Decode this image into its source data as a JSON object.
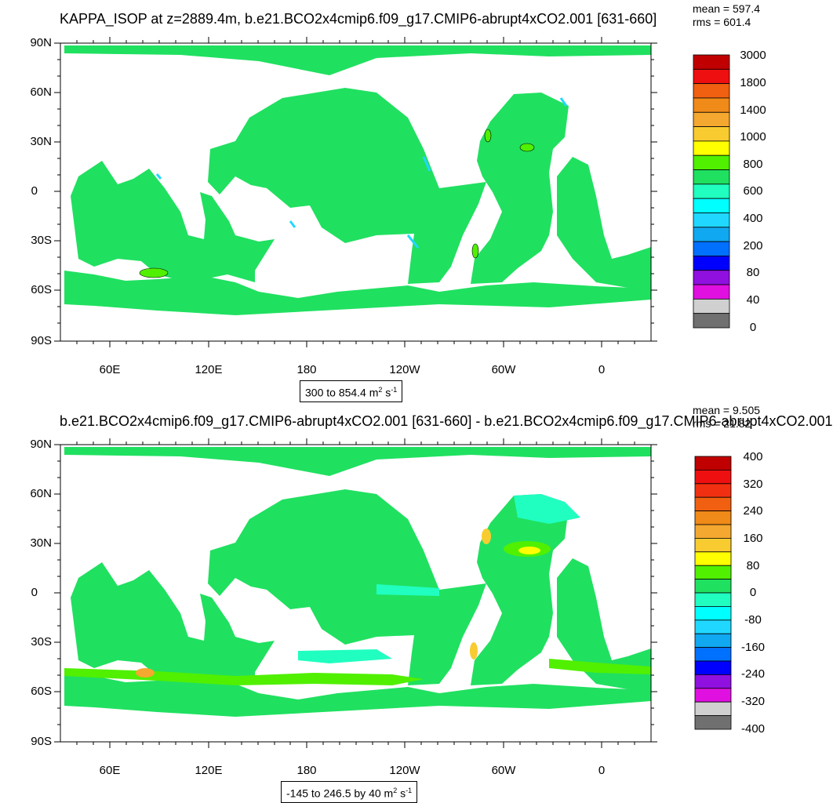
{
  "panels": [
    {
      "title": "KAPPA_ISOP at z=2889.4m, b.e21.BCO2x4cmip6.f09_g17.CMIP6-abrupt4xCO2.001 [631-660]",
      "mean": "mean = 597.4",
      "rms": "rms = 601.4",
      "range_note": "300 to 854.4 m",
      "range_unit_exp1": "2",
      "range_unit_s": " s",
      "range_unit_exp2": "-1",
      "colorbar_labels": [
        "3000",
        "1800",
        "1400",
        "1000",
        "800",
        "600",
        "400",
        "200",
        "80",
        "40",
        "0"
      ],
      "colorbar_colors": [
        "#c00000",
        "#ee1010",
        "#f06010",
        "#f08a18",
        "#f4a830",
        "#f8cc30",
        "#ffff00",
        "#50f000",
        "#20e060",
        "#20ffc0",
        "#00ffff",
        "#20d8ff",
        "#10a8f0",
        "#0070ff",
        "#0000ff",
        "#9010e0",
        "#e010e0",
        "#d0d0d0",
        "#707070"
      ]
    },
    {
      "title": "b.e21.BCO2x4cmip6.f09_g17.CMIP6-abrupt4xCO2.001 [631-660] - b.e21.BCO2x4cmip6.f09_g17.CMIP6-abrupt4xCO2.001",
      "mean": "mean = 9.505",
      "rms": "rms = 21.82",
      "range_note": "-145 to 246.5 by 40 m",
      "range_unit_exp1": "2",
      "range_unit_s": " s",
      "range_unit_exp2": "-1",
      "colorbar_labels": [
        "400",
        "320",
        "240",
        "160",
        "80",
        "0",
        "-80",
        "-160",
        "-240",
        "-320",
        "-400"
      ],
      "colorbar_colors": [
        "#c00000",
        "#ee1010",
        "#f03010",
        "#f06010",
        "#f08a18",
        "#f4a830",
        "#f8cc30",
        "#ffff00",
        "#50f000",
        "#20e060",
        "#20ffc0",
        "#00ffff",
        "#20d8ff",
        "#10a8f0",
        "#0070ff",
        "#0000ff",
        "#9010e0",
        "#e010e0",
        "#d0d0d0",
        "#707070"
      ]
    }
  ],
  "lat_labels": [
    "90N",
    "60N",
    "30N",
    "0",
    "30S",
    "60S",
    "90S"
  ],
  "lon_labels": [
    "60E",
    "120E",
    "180",
    "120W",
    "60W",
    "0"
  ]
}
